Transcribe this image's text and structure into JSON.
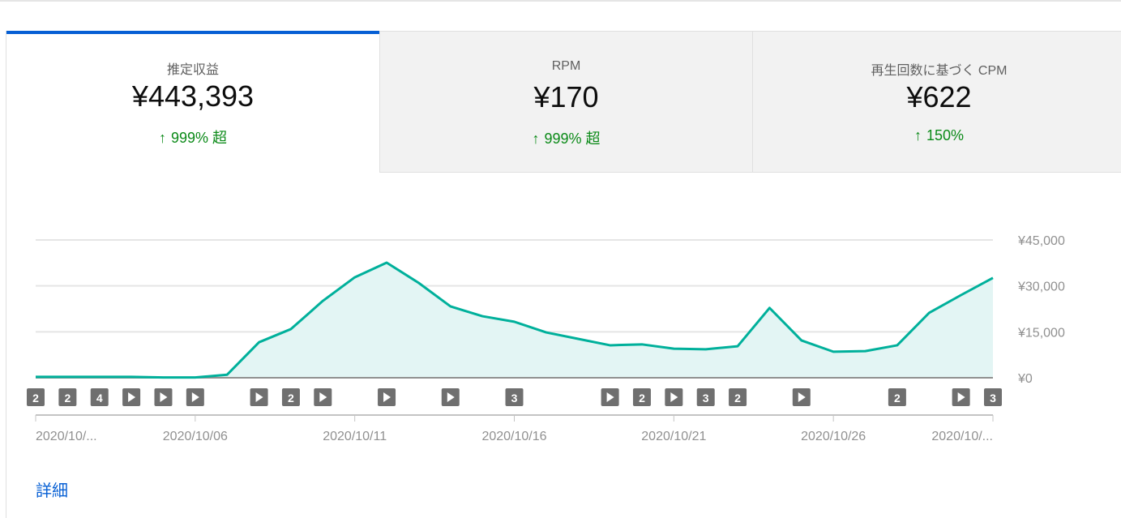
{
  "tabs": [
    {
      "label": "推定収益",
      "value": "¥443,393",
      "change": "999% 超",
      "direction": "up",
      "active": true
    },
    {
      "label": "RPM",
      "value": "¥170",
      "change": "999% 超",
      "direction": "up",
      "active": false
    },
    {
      "label": "再生回数に基づく CPM",
      "value": "¥622",
      "change": "150%",
      "direction": "up",
      "active": false
    }
  ],
  "more_link": "詳細",
  "colors": {
    "accent": "#065fd4",
    "line": "#00b09b",
    "fill": "#e3f5f4",
    "positive": "#0b8a18"
  },
  "chart_data": {
    "type": "area",
    "x": [
      "2020/10/01",
      "2020/10/02",
      "2020/10/03",
      "2020/10/04",
      "2020/10/05",
      "2020/10/06",
      "2020/10/07",
      "2020/10/08",
      "2020/10/09",
      "2020/10/10",
      "2020/10/11",
      "2020/10/12",
      "2020/10/13",
      "2020/10/14",
      "2020/10/15",
      "2020/10/16",
      "2020/10/17",
      "2020/10/18",
      "2020/10/19",
      "2020/10/20",
      "2020/10/21",
      "2020/10/22",
      "2020/10/23",
      "2020/10/24",
      "2020/10/25",
      "2020/10/26",
      "2020/10/27",
      "2020/10/28",
      "2020/10/29",
      "2020/10/30",
      "2020/10/31"
    ],
    "values": [
      300,
      300,
      300,
      300,
      100,
      100,
      1000,
      11600,
      15900,
      25100,
      32800,
      37600,
      31000,
      23300,
      20100,
      18300,
      14800,
      12700,
      10600,
      10900,
      9500,
      9300,
      10300,
      22800,
      12200,
      8500,
      8700,
      10600,
      21200,
      27000,
      32600
    ],
    "ylim": [
      0,
      45000
    ],
    "y_ticks": [
      {
        "v": 0,
        "label": "¥0"
      },
      {
        "v": 15000,
        "label": "¥15,000"
      },
      {
        "v": 30000,
        "label": "¥30,000"
      },
      {
        "v": 45000,
        "label": "¥45,000"
      }
    ],
    "x_ticks": [
      {
        "i": 0,
        "label": "2020/10/..."
      },
      {
        "i": 5,
        "label": "2020/10/06"
      },
      {
        "i": 10,
        "label": "2020/10/11"
      },
      {
        "i": 15,
        "label": "2020/10/16"
      },
      {
        "i": 20,
        "label": "2020/10/21"
      },
      {
        "i": 25,
        "label": "2020/10/26"
      },
      {
        "i": 30,
        "label": "2020/10/..."
      }
    ],
    "grid": true,
    "y_axis_side": "right",
    "markers": [
      {
        "i": 0,
        "label": "2"
      },
      {
        "i": 1,
        "label": "2"
      },
      {
        "i": 2,
        "label": "4"
      },
      {
        "i": 3,
        "label": "play"
      },
      {
        "i": 4,
        "label": "play"
      },
      {
        "i": 5,
        "label": "play"
      },
      {
        "i": 7,
        "label": "play"
      },
      {
        "i": 8,
        "label": "2"
      },
      {
        "i": 9,
        "label": "play"
      },
      {
        "i": 11,
        "label": "play"
      },
      {
        "i": 13,
        "label": "play"
      },
      {
        "i": 15,
        "label": "3"
      },
      {
        "i": 18,
        "label": "play"
      },
      {
        "i": 19,
        "label": "2"
      },
      {
        "i": 20,
        "label": "play"
      },
      {
        "i": 21,
        "label": "3"
      },
      {
        "i": 22,
        "label": "2"
      },
      {
        "i": 24,
        "label": "play"
      },
      {
        "i": 27,
        "label": "2"
      },
      {
        "i": 29,
        "label": "play"
      },
      {
        "i": 30,
        "label": "3"
      }
    ]
  }
}
